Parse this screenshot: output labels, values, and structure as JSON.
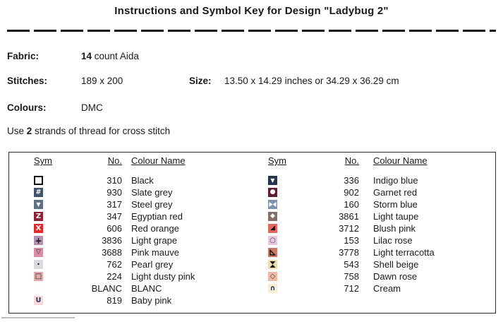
{
  "title": "Instructions and Symbol Key for Design \"Ladybug 2\"",
  "info": {
    "fabric_label": "Fabric:",
    "fabric_count": "14",
    "fabric_rest": " count Aida",
    "stitches_label": "Stitches:",
    "stitches_value": "189 x 200",
    "size_label": "Size:",
    "size_value": "13.50 x 14.29 inches or 34.29 x 36.29 cm",
    "colours_label": "Colours:",
    "colours_value": "DMC",
    "strands_prefix": "Use ",
    "strands_count": "2",
    "strands_suffix": " strands of thread for cross stitch"
  },
  "key": {
    "headers": {
      "sym": "Sym",
      "no": "No.",
      "name": "Colour Name"
    },
    "left_rows": [
      {
        "no": "310",
        "name": "Black",
        "sym": {
          "kind": "open-square",
          "glyph": "",
          "bg": "#ffffff",
          "fg": "#111111",
          "border": "#111111"
        }
      },
      {
        "no": "930",
        "name": "Slate grey",
        "sym": {
          "kind": "hash",
          "glyph": "#",
          "bg": "#42526b",
          "fg": "#ffffff"
        }
      },
      {
        "no": "317",
        "name": "Steel grey",
        "sym": {
          "kind": "triangle-down",
          "glyph": "▼",
          "bg": "#5d7086",
          "fg": "#ffffff"
        }
      },
      {
        "no": "347",
        "name": "Egyptian red",
        "sym": {
          "kind": "letter-z",
          "glyph": "Z",
          "bg": "#8e2139",
          "fg": "#ffffff"
        }
      },
      {
        "no": "606",
        "name": "Red orange",
        "sym": {
          "kind": "letter-x",
          "glyph": "X",
          "bg": "#df2b2b",
          "fg": "#ffffff"
        }
      },
      {
        "no": "3836",
        "name": "Light grape",
        "sym": {
          "kind": "plus",
          "glyph": "+",
          "bg": "#b490b2",
          "fg": "#141414"
        }
      },
      {
        "no": "3688",
        "name": "Pink mauve",
        "sym": {
          "kind": "triangle-down-outline",
          "glyph": "▽",
          "bg": "#d98da4",
          "fg": "#1f2c50"
        }
      },
      {
        "no": "762",
        "name": "Pearl grey",
        "sym": {
          "kind": "dot",
          "glyph": "•",
          "bg": "#d9dade",
          "fg": "#141414"
        }
      },
      {
        "no": "224",
        "name": "Light dusty pink",
        "sym": {
          "kind": "square-outline",
          "glyph": "□",
          "bg": "#e2abab",
          "fg": "#141414"
        }
      },
      {
        "no": "BLANC",
        "name": "BLANC",
        "sym": {
          "kind": "blank",
          "glyph": "",
          "bg": "#fffefd",
          "fg": "#141414"
        }
      },
      {
        "no": "819",
        "name": "Baby pink",
        "sym": {
          "kind": "letter-u",
          "glyph": "U",
          "bg": "#f7d8d8",
          "fg": "#22315a"
        }
      }
    ],
    "right_rows": [
      {
        "no": "336",
        "name": "Indigo blue",
        "sym": {
          "kind": "triangle-down",
          "glyph": "▼",
          "bg": "#25334e",
          "fg": "#ffffff"
        }
      },
      {
        "no": "902",
        "name": "Garnet red",
        "sym": {
          "kind": "circle",
          "glyph": "●",
          "bg": "#5c1f2b",
          "fg": "#ffffff"
        }
      },
      {
        "no": "160",
        "name": "Storm blue",
        "sym": {
          "kind": "bowtie",
          "glyph": "",
          "bg": "#7e92af",
          "fg": "#ffffff"
        }
      },
      {
        "no": "3861",
        "name": "Light taupe",
        "sym": {
          "kind": "diamond",
          "glyph": "◆",
          "bg": "#82706b",
          "fg": "#ffffff"
        }
      },
      {
        "no": "3712",
        "name": "Blush pink",
        "sym": {
          "kind": "corner-triangle",
          "glyph": "◢",
          "bg": "#df6a5f",
          "fg": "#141414"
        }
      },
      {
        "no": "153",
        "name": "Lilac rose",
        "sym": {
          "kind": "circle-outline",
          "glyph": "○",
          "bg": "#eac7e0",
          "fg": "#3a3a3a"
        }
      },
      {
        "no": "3778",
        "name": "Light terracotta",
        "sym": {
          "kind": "triangle-lower-left-outline",
          "glyph": "",
          "bg": "#c97a64",
          "fg": "#141414"
        }
      },
      {
        "no": "543",
        "name": "Shell beige",
        "sym": {
          "kind": "hourglass",
          "glyph": "",
          "bg": "#eddbb6",
          "fg": "#141414"
        }
      },
      {
        "no": "758",
        "name": "Dawn rose",
        "sym": {
          "kind": "diamond-outline",
          "glyph": "◇",
          "bg": "#edb9a0",
          "fg": "#3a3a3a"
        }
      },
      {
        "no": "712",
        "name": "Cream",
        "sym": {
          "kind": "arch",
          "glyph": "∩",
          "bg": "#f5eed4",
          "fg": "#22315a"
        }
      }
    ]
  }
}
